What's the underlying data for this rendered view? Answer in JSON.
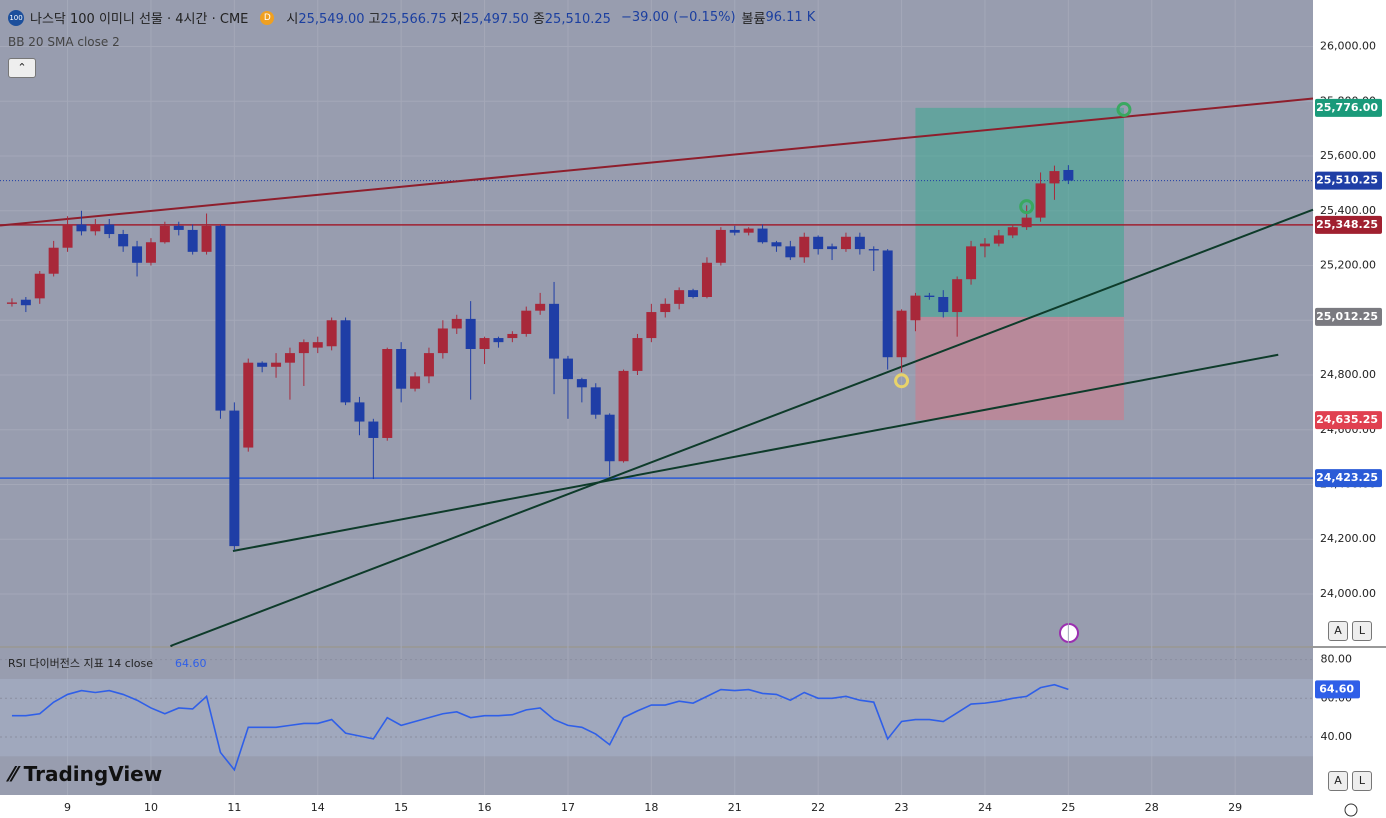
{
  "header": {
    "badge": "100",
    "symbol": "나스닥 100 이미니 선물 · 4시간 · CME",
    "d": "D",
    "ohlc": [
      {
        "label": "시",
        "value": "25,549.00"
      },
      {
        "label": "고",
        "value": "25,566.75"
      },
      {
        "label": "저",
        "value": "25,497.50"
      },
      {
        "label": "종",
        "value": "25,510.25"
      }
    ],
    "change": "−39.00 (−0.15%)",
    "volume_label": "볼륨",
    "volume": "96.11 K",
    "indicator": "BB 20 SMA close 2"
  },
  "buttons": [
    "A",
    "L"
  ],
  "watermark": "TradingView",
  "chart_data": [
    {
      "type": "candlestick",
      "up_color": "#a8283a",
      "down_color": "#1f3ea6",
      "open": [
        25060,
        25075,
        25080,
        25170,
        25265,
        25350,
        25325,
        25350,
        25315,
        25270,
        25210,
        25285,
        25345,
        25330,
        25250,
        25345,
        24670,
        24535,
        24845,
        24830,
        24845,
        24880,
        24900,
        24905,
        25000,
        24700,
        24630,
        24570,
        24895,
        24750,
        24795,
        24880,
        24970,
        25005,
        24895,
        24935,
        24935,
        24950,
        25035,
        25060,
        24860,
        24785,
        24755,
        24655,
        24485,
        24815,
        24935,
        25030,
        25060,
        25110,
        25085,
        25210,
        25330,
        25320,
        25335,
        25285,
        25270,
        25230,
        25305,
        25270,
        25260,
        25305,
        25260,
        25255,
        24865,
        25000,
        25090,
        25085,
        25030,
        25150,
        25270,
        25280,
        25310,
        25340,
        25375,
        25500,
        25549
      ],
      "high": [
        25080,
        25085,
        25180,
        25290,
        25380,
        25400,
        25370,
        25370,
        25330,
        25290,
        25300,
        25360,
        25360,
        25350,
        25390,
        25350,
        24700,
        24860,
        24850,
        24880,
        24900,
        24930,
        24940,
        25010,
        25010,
        24720,
        24640,
        24900,
        24920,
        24810,
        24900,
        25000,
        25020,
        25070,
        24940,
        24940,
        24960,
        25050,
        25100,
        25140,
        24870,
        24790,
        24770,
        24660,
        24820,
        24950,
        25060,
        25080,
        25120,
        25115,
        25230,
        25340,
        25345,
        25340,
        25350,
        25290,
        25290,
        25320,
        25310,
        25280,
        25320,
        25320,
        25270,
        25260,
        25040,
        25100,
        25100,
        25110,
        25160,
        25290,
        25300,
        25330,
        25350,
        25420,
        25540,
        25565,
        25566.75
      ],
      "low": [
        25050,
        25030,
        25060,
        25160,
        25250,
        25310,
        25310,
        25300,
        25250,
        25160,
        25200,
        25280,
        25310,
        25240,
        25240,
        24640,
        24160,
        24520,
        24810,
        24790,
        24710,
        24760,
        24880,
        24890,
        24690,
        24580,
        24420,
        24560,
        24700,
        24740,
        24770,
        24860,
        24950,
        24710,
        24840,
        24900,
        24920,
        24940,
        25020,
        24730,
        24640,
        24700,
        24640,
        24430,
        24480,
        24800,
        24920,
        25010,
        25040,
        25080,
        25080,
        25200,
        25310,
        25310,
        25280,
        25250,
        25220,
        25210,
        25240,
        25220,
        25250,
        25240,
        25180,
        24820,
        24810,
        24960,
        25075,
        25010,
        24940,
        25130,
        25230,
        25270,
        25300,
        25330,
        25360,
        25440,
        25497.5
      ],
      "close": [
        25065,
        25055,
        25170,
        25265,
        25350,
        25325,
        25350,
        25315,
        25270,
        25210,
        25285,
        25345,
        25330,
        25250,
        25345,
        24670,
        24175,
        24845,
        24830,
        24845,
        24880,
        24920,
        24920,
        25000,
        24700,
        24630,
        24570,
        24895,
        24750,
        24795,
        24880,
        24970,
        25005,
        24895,
        24935,
        24920,
        24950,
        25035,
        25060,
        24860,
        24785,
        24755,
        24655,
        24485,
        24815,
        24935,
        25030,
        25060,
        25110,
        25085,
        25210,
        25330,
        25320,
        25335,
        25285,
        25270,
        25230,
        25305,
        25260,
        25260,
        25305,
        25260,
        25255,
        24865,
        25035,
        25090,
        25085,
        25030,
        25150,
        25270,
        25280,
        25310,
        25340,
        25375,
        25500,
        25545,
        25510.25
      ],
      "xlim": [
        -0.86,
        93.6
      ],
      "xticks": [
        {
          "value": 4,
          "label": "9"
        },
        {
          "value": 10,
          "label": "10"
        },
        {
          "value": 16,
          "label": "11"
        },
        {
          "value": 22,
          "label": "14"
        },
        {
          "value": 28,
          "label": "15"
        },
        {
          "value": 34,
          "label": "16"
        },
        {
          "value": 40,
          "label": "17"
        },
        {
          "value": 46,
          "label": "18"
        },
        {
          "value": 52,
          "label": "21"
        },
        {
          "value": 58,
          "label": "22"
        },
        {
          "value": 64,
          "label": "23"
        },
        {
          "value": 70,
          "label": "24"
        },
        {
          "value": 76,
          "label": "25"
        },
        {
          "value": 82,
          "label": "28"
        },
        {
          "value": 88,
          "label": "29"
        }
      ],
      "ylim": [
        23810,
        26170
      ],
      "yticks": [
        {
          "value": 24000,
          "label": "24,000.00"
        },
        {
          "value": 24200,
          "label": "24,200.00"
        },
        {
          "value": 24400,
          "label": "24,400.00"
        },
        {
          "value": 24600,
          "label": "24,600.00"
        },
        {
          "value": 24800,
          "label": "24,800.00"
        },
        {
          "value": 25000,
          "label": "25,000.00"
        },
        {
          "value": 25200,
          "label": "25,200.00"
        },
        {
          "value": 25400,
          "label": "25,400.00"
        },
        {
          "value": 25600,
          "label": "25,600.00"
        },
        {
          "value": 25800,
          "label": "25,800.00"
        },
        {
          "value": 26000,
          "label": "26,000.00"
        }
      ],
      "hlines": [
        {
          "value": 25348.25,
          "label": "25,348.25",
          "color": "#a02030"
        },
        {
          "value": 24423.25,
          "label": "24,423.25",
          "color": "#2a5bd7"
        }
      ],
      "last_price": {
        "value": 25510.25,
        "label": "25,510.25",
        "color": "#1f3ea6"
      },
      "position": {
        "x": [
          65,
          80
        ],
        "target": {
          "value": 25776,
          "label": "25,776.00",
          "color": "#1a9a7a"
        },
        "entry": {
          "value": 25012.25,
          "label": "25,012.25",
          "color": "#7a7a80"
        },
        "stop": {
          "value": 24635.25,
          "label": "24,635.25",
          "color": "#e04050"
        }
      },
      "trendlines": [
        {
          "color": "#8e1e2c",
          "x": [
            -0.86,
            93.6
          ],
          "y": [
            25346,
            25810
          ]
        },
        {
          "color": "#0e3b2a",
          "x": [
            11.4,
            93.6
          ],
          "y": [
            23810,
            25404
          ]
        },
        {
          "color": "#0e3b2a",
          "x": [
            15.9,
            91.1
          ],
          "y": [
            24157,
            24874
          ]
        }
      ],
      "markers": [
        {
          "x": 64,
          "value": 24779,
          "color": "#e8d36a"
        },
        {
          "x": 73,
          "value": 25415,
          "color": "#3aa860"
        },
        {
          "x": 80,
          "value": 25770,
          "color": "#3aa860"
        }
      ]
    },
    {
      "type": "line",
      "title": "RSI 다이버전스 지표 14 close",
      "color": "#2f5fe8",
      "values": [
        51,
        51,
        52,
        58,
        62,
        64,
        63,
        64,
        62,
        59,
        55,
        52,
        55,
        54.5,
        61,
        32,
        23,
        45,
        45,
        45,
        46,
        47,
        47,
        49,
        42,
        40.5,
        39,
        50,
        46,
        48,
        50,
        52,
        53,
        50,
        51,
        51,
        51.5,
        54,
        55,
        49,
        46,
        45,
        41.5,
        36,
        50,
        53.5,
        56.5,
        56.5,
        58.5,
        57.5,
        61,
        64.5,
        64,
        64.5,
        62.5,
        62,
        59,
        63,
        60,
        60,
        61,
        59,
        58,
        39,
        48,
        49,
        49,
        48,
        52.5,
        57,
        57.5,
        58.5,
        60,
        61,
        65.5,
        67,
        64.6
      ],
      "last": {
        "value": 64.6,
        "label": "64.60"
      },
      "band": [
        30,
        70
      ],
      "ylim": [
        10,
        86
      ],
      "yticks": [
        {
          "value": 40,
          "label": "40.00"
        },
        {
          "value": 60,
          "label": "60.00"
        },
        {
          "value": 80,
          "label": "80.00"
        }
      ]
    }
  ]
}
